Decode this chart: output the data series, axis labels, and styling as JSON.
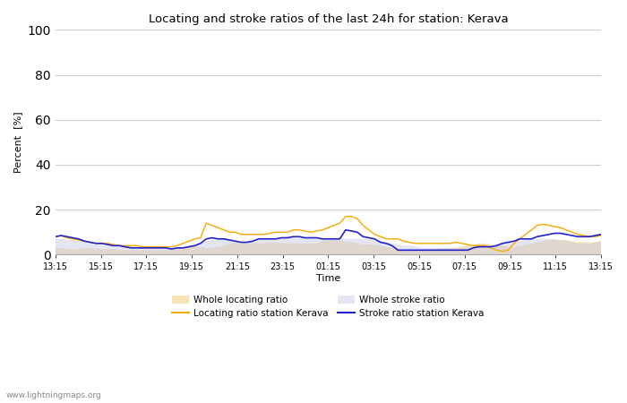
{
  "title": "Locating and stroke ratios of the last 24h for station: Kerava",
  "xlabel": "Time",
  "ylabel": "Percent  [%]",
  "ylim": [
    0,
    100
  ],
  "yticks": [
    0,
    20,
    40,
    60,
    80,
    100
  ],
  "x_labels": [
    "13:15",
    "15:15",
    "17:15",
    "19:15",
    "21:15",
    "23:15",
    "01:15",
    "03:15",
    "05:15",
    "07:15",
    "09:15",
    "11:15",
    "13:15"
  ],
  "watermark": "www.lightningmaps.org",
  "background_color": "#ffffff",
  "plot_bg_color": "#ffffff",
  "grid_color": "#cccccc",
  "whole_locating_color": "#f5d898",
  "whole_stroke_color": "#c8cce8",
  "locating_line_color": "#f5a800",
  "stroke_line_color": "#2222cc",
  "locating_fill_alpha": 0.7,
  "stroke_fill_alpha": 0.5,
  "whole_locating": [
    3,
    3,
    2.5,
    2.5,
    2.5,
    3,
    3,
    2.5,
    2.5,
    2.5,
    2.5,
    2,
    2,
    2,
    2,
    2,
    2,
    2,
    2,
    2,
    2,
    2.5,
    3,
    3.5,
    4,
    3.5,
    3,
    3,
    3.5,
    4,
    5,
    5.5,
    5,
    5,
    5.5,
    5,
    5,
    5.5,
    5.5,
    5,
    5,
    5,
    5,
    5,
    5,
    5,
    6,
    6.5,
    6.5,
    6,
    6,
    5.5,
    5,
    4.5,
    4.5,
    4.5,
    4,
    3.5,
    3,
    2.5,
    2,
    2,
    2,
    2,
    2,
    2,
    2.5,
    3,
    3,
    3,
    3.5,
    4,
    4.5,
    5,
    5,
    4.5,
    4,
    4,
    3.5,
    3.5,
    4,
    4.5,
    5,
    5.5,
    6,
    6.5,
    6.5,
    6.5,
    6.5,
    6,
    5.5,
    5.5,
    5.5,
    5.5,
    6,
    6.5
  ],
  "whole_stroke": [
    7,
    7,
    6.5,
    6.5,
    6,
    5.5,
    5,
    4.5,
    4.5,
    4,
    4,
    4,
    4,
    3.5,
    3.5,
    3.5,
    3.5,
    3.5,
    3.5,
    3.5,
    3,
    3,
    3,
    3.5,
    4,
    5,
    6,
    6.5,
    7,
    7,
    6.5,
    6,
    5.5,
    5.5,
    6,
    6.5,
    7,
    7,
    7,
    7,
    7.5,
    7.5,
    7.5,
    7.5,
    7.5,
    7,
    7,
    7,
    7,
    7,
    7,
    7,
    7,
    7,
    7,
    6.5,
    6,
    5.5,
    5,
    4.5,
    4,
    4,
    3.5,
    3,
    3,
    3,
    3,
    3,
    3,
    3,
    3,
    3,
    3.5,
    4,
    4,
    4,
    4.5,
    5,
    5.5,
    5.5,
    6,
    6.5,
    7,
    7,
    7,
    7,
    7,
    6.5,
    6,
    5.5,
    5,
    5,
    5,
    5.5,
    6
  ],
  "locating_line": [
    8,
    8.5,
    7.5,
    7,
    6.5,
    6,
    5.5,
    5,
    5,
    5,
    4.5,
    4,
    4,
    4,
    4,
    3.5,
    3.5,
    3.5,
    3.5,
    3.5,
    3.5,
    4,
    5,
    6,
    7,
    7.5,
    14,
    13,
    12,
    11,
    10,
    10,
    9,
    9,
    9,
    9,
    9,
    9.5,
    10,
    10,
    10,
    11,
    11,
    10.5,
    10,
    10.5,
    11,
    12,
    13,
    14,
    17,
    17,
    16,
    13,
    11,
    9,
    8,
    7,
    7,
    7,
    6,
    5.5,
    5,
    5,
    5,
    5,
    5,
    5,
    5,
    5.5,
    5,
    4.5,
    4,
    4,
    4,
    3,
    2,
    1.5,
    2,
    5,
    7,
    9,
    11,
    13,
    13.5,
    13,
    12.5,
    12,
    11,
    10,
    9,
    8.5,
    8,
    8,
    8.5,
    9
  ],
  "stroke_line": [
    8,
    8.5,
    8,
    7.5,
    7,
    6,
    5.5,
    5,
    5,
    4.5,
    4,
    4,
    3.5,
    3,
    3,
    3,
    3,
    3,
    3,
    3,
    2.5,
    3,
    3,
    3.5,
    4,
    5,
    7,
    7.5,
    7,
    7,
    6.5,
    6,
    5.5,
    5.5,
    6,
    7,
    7,
    7,
    7,
    7.5,
    7.5,
    8,
    8,
    7.5,
    7.5,
    7.5,
    7,
    7,
    7,
    7,
    11,
    10.5,
    10,
    8,
    7.5,
    7,
    5.5,
    5,
    4,
    2,
    2,
    2,
    2,
    2,
    2,
    2,
    2,
    2,
    2,
    2,
    2,
    2,
    3,
    3.5,
    3.5,
    3.5,
    4,
    5,
    5.5,
    6,
    7,
    7,
    7,
    8,
    8.5,
    9,
    9.5,
    9.5,
    9,
    8.5,
    8,
    8,
    8,
    8.5,
    9
  ]
}
